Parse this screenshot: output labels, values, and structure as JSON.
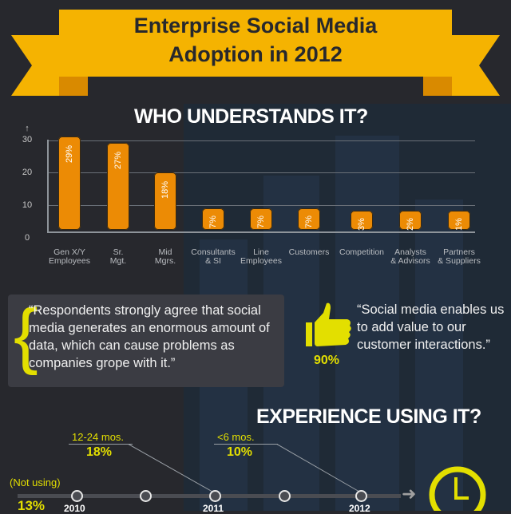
{
  "header": {
    "title_line1": "Enterprise Social Media",
    "title_line2": "Adoption in 2012"
  },
  "section1": {
    "heading": "WHO UNDERSTANDS IT?",
    "y_axis_arrow": "↑"
  },
  "chart_data": {
    "type": "bar",
    "title": "WHO UNDERSTANDS IT?",
    "categories": [
      "Gen X/Y Employees",
      "Sr. Mgt.",
      "Mid Mgrs.",
      "Consultants & SI",
      "Line Employees",
      "Customers",
      "Competition",
      "Analysts & Advisors",
      "Partners & Suppliers"
    ],
    "values": [
      29,
      27,
      18,
      7,
      7,
      7,
      3,
      2,
      1
    ],
    "value_labels": [
      "29%",
      "27%",
      "18%",
      "7%",
      "7%",
      "7%",
      "3%",
      "2%",
      "1%"
    ],
    "yticks": [
      0,
      10,
      20,
      30
    ],
    "ylim": [
      0,
      30
    ],
    "xlabel": "",
    "ylabel": "",
    "grid": true,
    "bar_color": "#ec8b05"
  },
  "xlabels": [
    "Gen X/Y\nEmployees",
    "Sr.\nMgt.",
    "Mid\nMgrs.",
    "Consultants\n& SI",
    "Line\nEmployees",
    "Customers",
    "Competition",
    "Analysts\n& Advisors",
    "Partners\n& Suppliers"
  ],
  "quotes": {
    "left": "“Respondents strongly agree that social media generates an enormous amount of data, which can cause problems as companies grope with it.”",
    "right": "“Social media enables us to add value to our customer interactions.”",
    "right_pct": "90%",
    "icon": "thumbs-up-icon"
  },
  "section2": {
    "heading": "EXPERIENCE USING IT?",
    "labels": [
      {
        "label": "(Not using)",
        "pct": "13%"
      },
      {
        "label": "12-24 mos.",
        "pct": "18%"
      },
      {
        "label": "<6 mos.",
        "pct": "10%"
      }
    ],
    "years": [
      "2010",
      "2011",
      "2012"
    ],
    "arrow": "➜",
    "icon": "clock-icon"
  },
  "colors": {
    "accent": "#f5b301",
    "bar": "#ec8b05",
    "highlight": "#e3df00",
    "background": "#27282d"
  }
}
